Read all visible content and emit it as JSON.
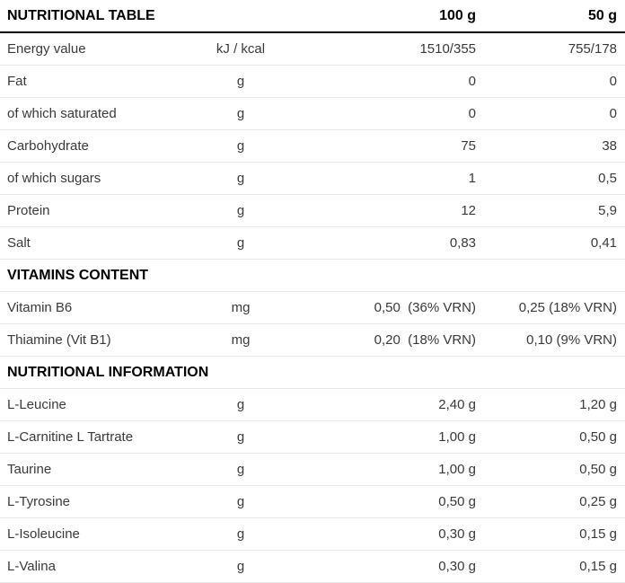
{
  "table": {
    "title": "NUTRITIONAL TABLE",
    "columns": {
      "qty_100": "100 g",
      "qty_50": "50 g"
    },
    "sections": [
      {
        "title": null,
        "rows": [
          {
            "label": "Energy value",
            "unit": "kJ / kcal",
            "v100": "1510/355",
            "v50": "755/178"
          },
          {
            "label": "Fat",
            "unit": "g",
            "v100": "0",
            "v50": "0"
          },
          {
            "label": "of which saturated",
            "unit": "g",
            "v100": "0",
            "v50": "0"
          },
          {
            "label": "Carbohydrate",
            "unit": "g",
            "v100": "75",
            "v50": "38"
          },
          {
            "label": "of which sugars",
            "unit": "g",
            "v100": "1",
            "v50": "0,5"
          },
          {
            "label": "Protein",
            "unit": "g",
            "v100": "12",
            "v50": "5,9"
          },
          {
            "label": "Salt",
            "unit": "g",
            "v100": "0,83",
            "v50": "0,41"
          }
        ]
      },
      {
        "title": "VITAMINS CONTENT",
        "rows": [
          {
            "label": "Vitamin B6",
            "unit": "mg",
            "v100": "0,50  (36% VRN)",
            "v50": "0,25 (18% VRN)"
          },
          {
            "label": "Thiamine (Vit B1)",
            "unit": "mg",
            "v100": "0,20  (18% VRN)",
            "v50": "0,10 (9% VRN)"
          }
        ]
      },
      {
        "title": "NUTRITIONAL INFORMATION",
        "rows": [
          {
            "label": "L-Leucine",
            "unit": "g",
            "v100": "2,40 g",
            "v50": "1,20 g"
          },
          {
            "label": "L-Carnitine L Tartrate",
            "unit": "g",
            "v100": "1,00 g",
            "v50": "0,50 g"
          },
          {
            "label": "Taurine",
            "unit": "g",
            "v100": "1,00 g",
            "v50": "0,50 g"
          },
          {
            "label": "L-Tyrosine",
            "unit": "g",
            "v100": "0,50 g",
            "v50": "0,25 g"
          },
          {
            "label": "L-Isoleucine",
            "unit": "g",
            "v100": "0,30 g",
            "v50": "0,15 g"
          },
          {
            "label": "L-Valina",
            "unit": "g",
            "v100": "0,30 g",
            "v50": "0,15 g"
          }
        ]
      }
    ],
    "colors": {
      "heading_text": "#000000",
      "body_text": "#3a3a3a",
      "header_rule": "#000000",
      "row_rule": "#e8e8e8",
      "background": "#ffffff"
    }
  }
}
